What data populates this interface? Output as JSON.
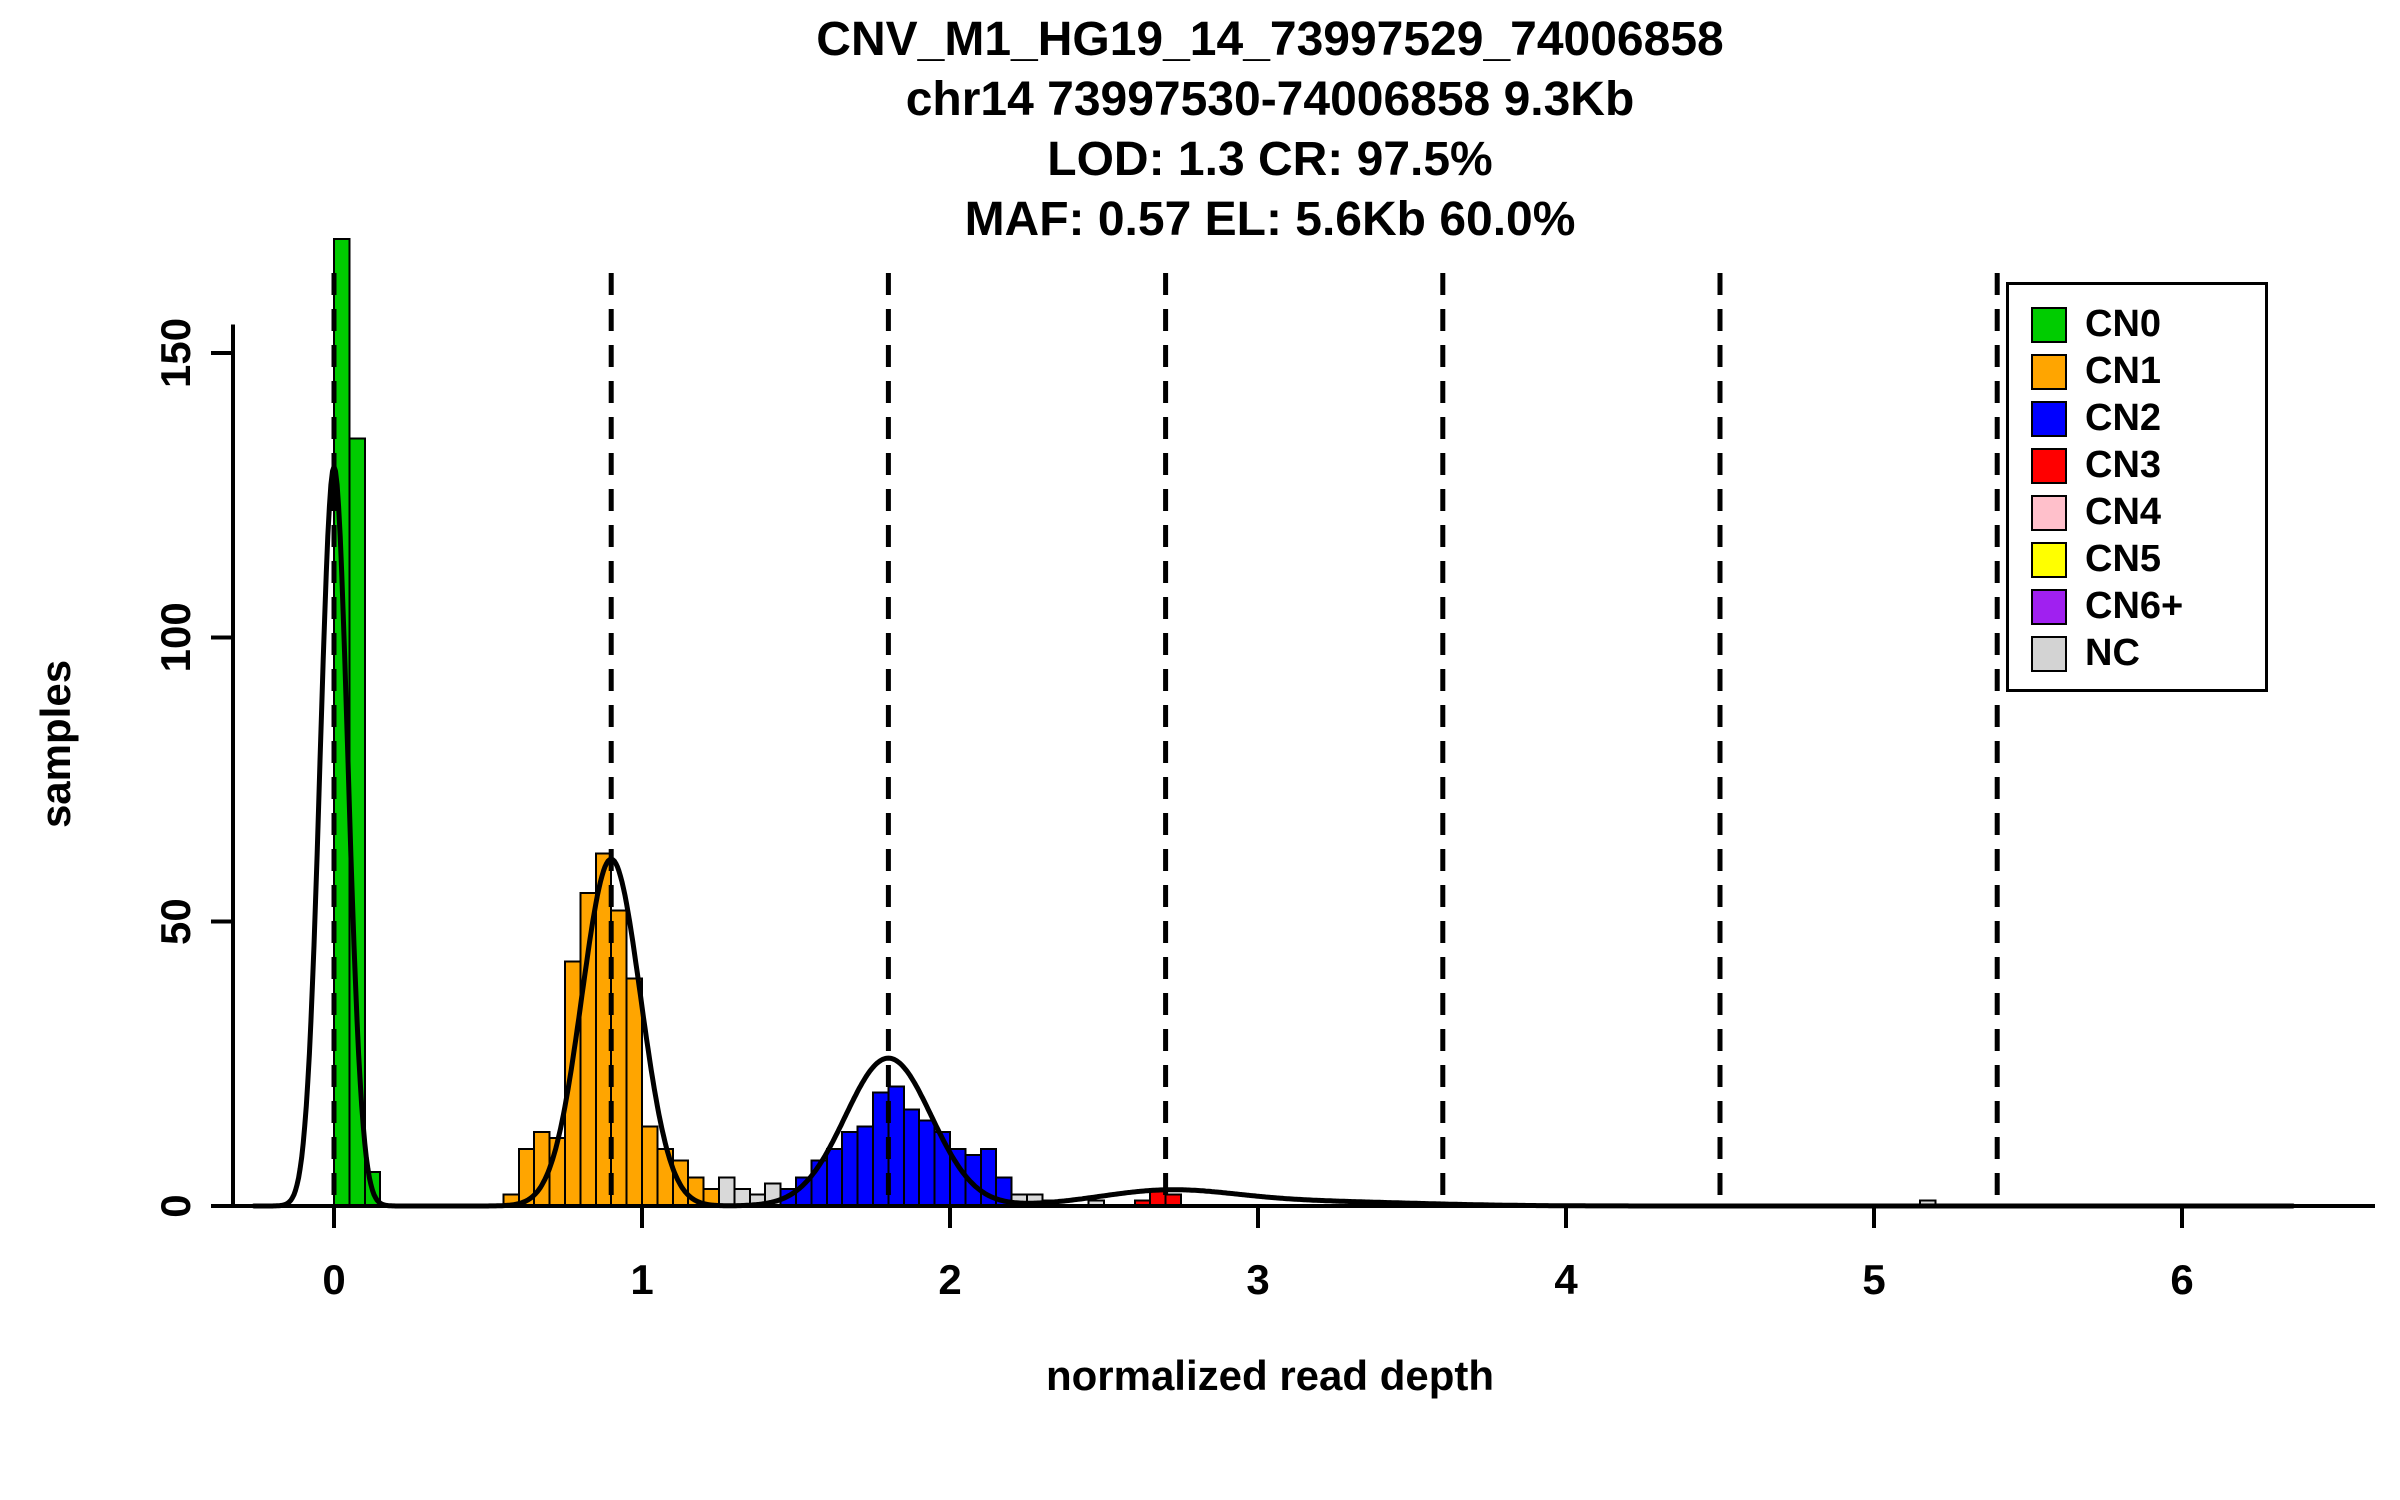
{
  "title": {
    "line1": "CNV_M1_HG19_14_73997529_74006858",
    "line2": "chr14 73997530-74006858 9.3Kb",
    "line3": "LOD: 1.3 CR: 97.5%",
    "line4": "MAF: 0.57 EL: 5.6Kb 60.0%"
  },
  "axes": {
    "x_label": "normalized read depth",
    "y_label": "samples",
    "x_ticks": [
      0,
      1,
      2,
      3,
      4,
      5,
      6
    ],
    "y_ticks": [
      0,
      50,
      100,
      150
    ]
  },
  "legend": {
    "items": [
      {
        "label": "CN0",
        "color": "#00CC00"
      },
      {
        "label": "CN1",
        "color": "#FFA500"
      },
      {
        "label": "CN2",
        "color": "#0000FF"
      },
      {
        "label": "CN3",
        "color": "#FF0000"
      },
      {
        "label": "CN4",
        "color": "#FFC0CB"
      },
      {
        "label": "CN5",
        "color": "#FFFF00"
      },
      {
        "label": "CN6+",
        "color": "#A020F0"
      },
      {
        "label": "NC",
        "color": "#D3D3D3"
      }
    ]
  },
  "chart_data": {
    "type": "bar",
    "subtype": "histogram_with_density_overlay",
    "title": "CNV_M1_HG19_14_73997529_74006858",
    "subtitle_lines": [
      "chr14 73997530-74006858 9.3Kb",
      "LOD: 1.3 CR: 97.5%",
      "MAF: 0.57 EL: 5.6Kb 60.0%"
    ],
    "xlabel": "normalized read depth",
    "ylabel": "samples",
    "xlim": [
      -0.33,
      6.4
    ],
    "ylim": [
      0,
      175
    ],
    "bin_width": 0.05,
    "dashed_lines_x": [
      0,
      0.9,
      1.8,
      2.7,
      3.6,
      4.5,
      5.4
    ],
    "colors": {
      "CN0": "#00CC00",
      "CN1": "#FFA500",
      "CN2": "#0000FF",
      "CN3": "#FF0000",
      "CN4": "#FFC0CB",
      "CN5": "#FFFF00",
      "CN6+": "#A020F0",
      "NC": "#D9D9D9"
    },
    "bins": [
      {
        "x": 0.0,
        "h": 170,
        "cn": "CN0"
      },
      {
        "x": 0.05,
        "h": 135,
        "cn": "CN0"
      },
      {
        "x": 0.1,
        "h": 6,
        "cn": "CN0"
      },
      {
        "x": 0.55,
        "h": 2,
        "cn": "CN1"
      },
      {
        "x": 0.6,
        "h": 10,
        "cn": "CN1"
      },
      {
        "x": 0.65,
        "h": 13,
        "cn": "CN1"
      },
      {
        "x": 0.7,
        "h": 12,
        "cn": "CN1"
      },
      {
        "x": 0.75,
        "h": 43,
        "cn": "CN1"
      },
      {
        "x": 0.8,
        "h": 55,
        "cn": "CN1"
      },
      {
        "x": 0.85,
        "h": 62,
        "cn": "CN1"
      },
      {
        "x": 0.9,
        "h": 52,
        "cn": "CN1"
      },
      {
        "x": 0.95,
        "h": 40,
        "cn": "CN1"
      },
      {
        "x": 1.0,
        "h": 14,
        "cn": "CN1"
      },
      {
        "x": 1.05,
        "h": 10,
        "cn": "CN1"
      },
      {
        "x": 1.1,
        "h": 8,
        "cn": "CN1"
      },
      {
        "x": 1.15,
        "h": 5,
        "cn": "CN1"
      },
      {
        "x": 1.2,
        "h": 3,
        "cn": "CN1"
      },
      {
        "x": 1.25,
        "h": 5,
        "cn": "NC"
      },
      {
        "x": 1.3,
        "h": 3,
        "cn": "NC"
      },
      {
        "x": 1.35,
        "h": 2,
        "cn": "NC"
      },
      {
        "x": 1.4,
        "h": 4,
        "cn": "NC"
      },
      {
        "x": 1.45,
        "h": 3,
        "cn": "CN2"
      },
      {
        "x": 1.5,
        "h": 5,
        "cn": "CN2"
      },
      {
        "x": 1.55,
        "h": 8,
        "cn": "CN2"
      },
      {
        "x": 1.6,
        "h": 10,
        "cn": "CN2"
      },
      {
        "x": 1.65,
        "h": 13,
        "cn": "CN2"
      },
      {
        "x": 1.7,
        "h": 14,
        "cn": "CN2"
      },
      {
        "x": 1.75,
        "h": 20,
        "cn": "CN2"
      },
      {
        "x": 1.8,
        "h": 21,
        "cn": "CN2"
      },
      {
        "x": 1.85,
        "h": 17,
        "cn": "CN2"
      },
      {
        "x": 1.9,
        "h": 15,
        "cn": "CN2"
      },
      {
        "x": 1.95,
        "h": 13,
        "cn": "CN2"
      },
      {
        "x": 2.0,
        "h": 10,
        "cn": "CN2"
      },
      {
        "x": 2.05,
        "h": 9,
        "cn": "CN2"
      },
      {
        "x": 2.1,
        "h": 10,
        "cn": "CN2"
      },
      {
        "x": 2.15,
        "h": 5,
        "cn": "CN2"
      },
      {
        "x": 2.2,
        "h": 2,
        "cn": "NC"
      },
      {
        "x": 2.25,
        "h": 2,
        "cn": "NC"
      },
      {
        "x": 2.3,
        "h": 1,
        "cn": "NC"
      },
      {
        "x": 2.45,
        "h": 1,
        "cn": "NC"
      },
      {
        "x": 2.6,
        "h": 1,
        "cn": "CN3"
      },
      {
        "x": 2.65,
        "h": 3,
        "cn": "CN3"
      },
      {
        "x": 2.7,
        "h": 2,
        "cn": "CN3"
      },
      {
        "x": 5.15,
        "h": 1,
        "cn": "NC"
      }
    ],
    "density_components": [
      {
        "mu": 0.0,
        "sigma": 0.045,
        "amp": 130
      },
      {
        "mu": 0.9,
        "sigma": 0.095,
        "amp": 61
      },
      {
        "mu": 1.8,
        "sigma": 0.14,
        "amp": 26
      },
      {
        "mu": 2.7,
        "sigma": 0.22,
        "amp": 2.5
      },
      {
        "mu": 3.15,
        "sigma": 0.35,
        "amp": 0.8
      }
    ]
  }
}
